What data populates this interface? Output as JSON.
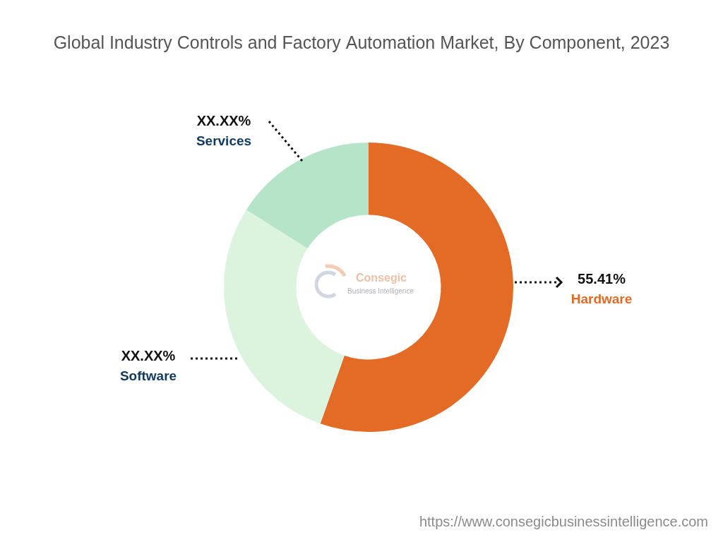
{
  "chart_data": {
    "type": "doughnut",
    "title": "Global Industry Controls and Factory Automation Market, By Component, 2023",
    "categories": [
      "Hardware",
      "Software",
      "Services"
    ],
    "values": [
      55.41,
      28.59,
      16.0
    ],
    "value_labels": [
      "55.41%",
      "XX.XX%",
      "XX.XX%"
    ],
    "colors": [
      "#e36b26",
      "#dcf3de",
      "#b5e4c8"
    ],
    "data_labels": true,
    "watermark": [
      "Consegic",
      "Business Intelligence"
    ],
    "source": "https://www.consegicbusinessintelligence.com"
  }
}
